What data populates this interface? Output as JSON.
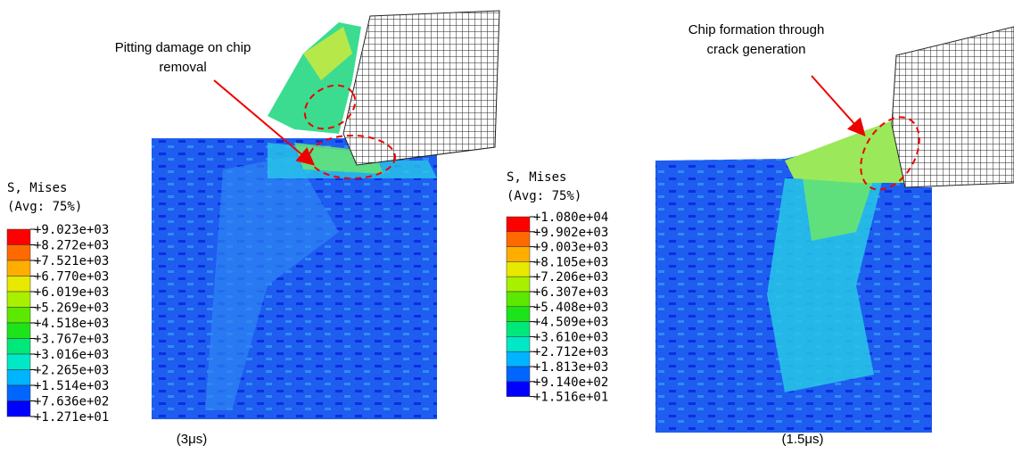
{
  "panels": [
    {
      "legend": {
        "title": "S, Mises",
        "subtitle": "(Avg: 75%)",
        "labels": [
          "+9.023e+03",
          "+8.272e+03",
          "+7.521e+03",
          "+6.770e+03",
          "+6.019e+03",
          "+5.269e+03",
          "+4.518e+03",
          "+3.767e+03",
          "+3.016e+03",
          "+2.265e+03",
          "+1.514e+03",
          "+7.636e+02",
          "+1.271e+01"
        ]
      },
      "annotation": [
        "Pitting damage on chip",
        "removal"
      ],
      "caption": "(3μs)"
    },
    {
      "legend": {
        "title": "S, Mises",
        "subtitle": "(Avg: 75%)",
        "labels": [
          "+1.080e+04",
          "+9.902e+03",
          "+9.003e+03",
          "+8.105e+03",
          "+7.206e+03",
          "+6.307e+03",
          "+5.408e+03",
          "+4.509e+03",
          "+3.610e+03",
          "+2.712e+03",
          "+1.813e+03",
          "+9.140e+02",
          "+1.516e+01"
        ]
      },
      "annotation": [
        "Chip formation through",
        "crack generation"
      ],
      "caption": "(1.5μs)"
    }
  ]
}
